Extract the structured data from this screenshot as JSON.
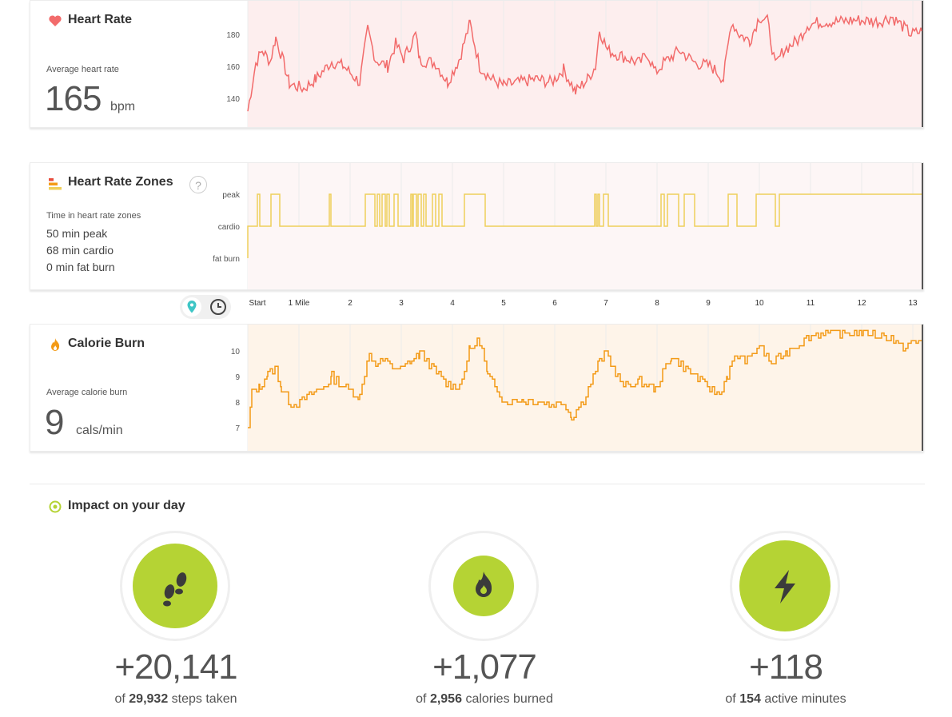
{
  "heart_rate": {
    "title": "Heart Rate",
    "subtitle": "Average heart rate",
    "value": "165",
    "unit": "bpm",
    "y_ticks": [
      "180",
      "160",
      "140"
    ],
    "color": "#f26b6b",
    "fill": "#fdeeee",
    "icon": "heart-icon"
  },
  "zones": {
    "title": "Heart Rate Zones",
    "subtitle": "Time in heart rate zones",
    "lines": [
      "50 min peak",
      "68 min cardio",
      "0 min fat burn"
    ],
    "levels": [
      "peak",
      "cardio",
      "fat burn"
    ],
    "help": "?",
    "color": "#efcf5a",
    "icon": "bars-icon"
  },
  "x_axis": [
    "Start",
    "1 Mile",
    "2",
    "3",
    "4",
    "5",
    "6",
    "7",
    "8",
    "9",
    "10",
    "11",
    "12",
    "13"
  ],
  "calories": {
    "title": "Calorie Burn",
    "subtitle": "Average calorie burn",
    "value": "9",
    "unit": "cals/min",
    "y_ticks": [
      "10",
      "9",
      "8",
      "7"
    ],
    "color": "#f39a16",
    "fill": "#fef4e9",
    "icon": "flame-icon"
  },
  "impact": {
    "title": "Impact on your day",
    "icon": "target-icon",
    "accent": "#b5d334",
    "stats": [
      {
        "icon": "footsteps-icon",
        "value": "+20,141",
        "pre": "of",
        "total": "29,932",
        "post": "steps taken"
      },
      {
        "icon": "flame-icon",
        "value": "+1,077",
        "pre": "of",
        "total": "2,956",
        "post": "calories burned"
      },
      {
        "icon": "bolt-icon",
        "value": "+118",
        "pre": "of",
        "total": "154",
        "post": "active minutes"
      }
    ]
  }
}
